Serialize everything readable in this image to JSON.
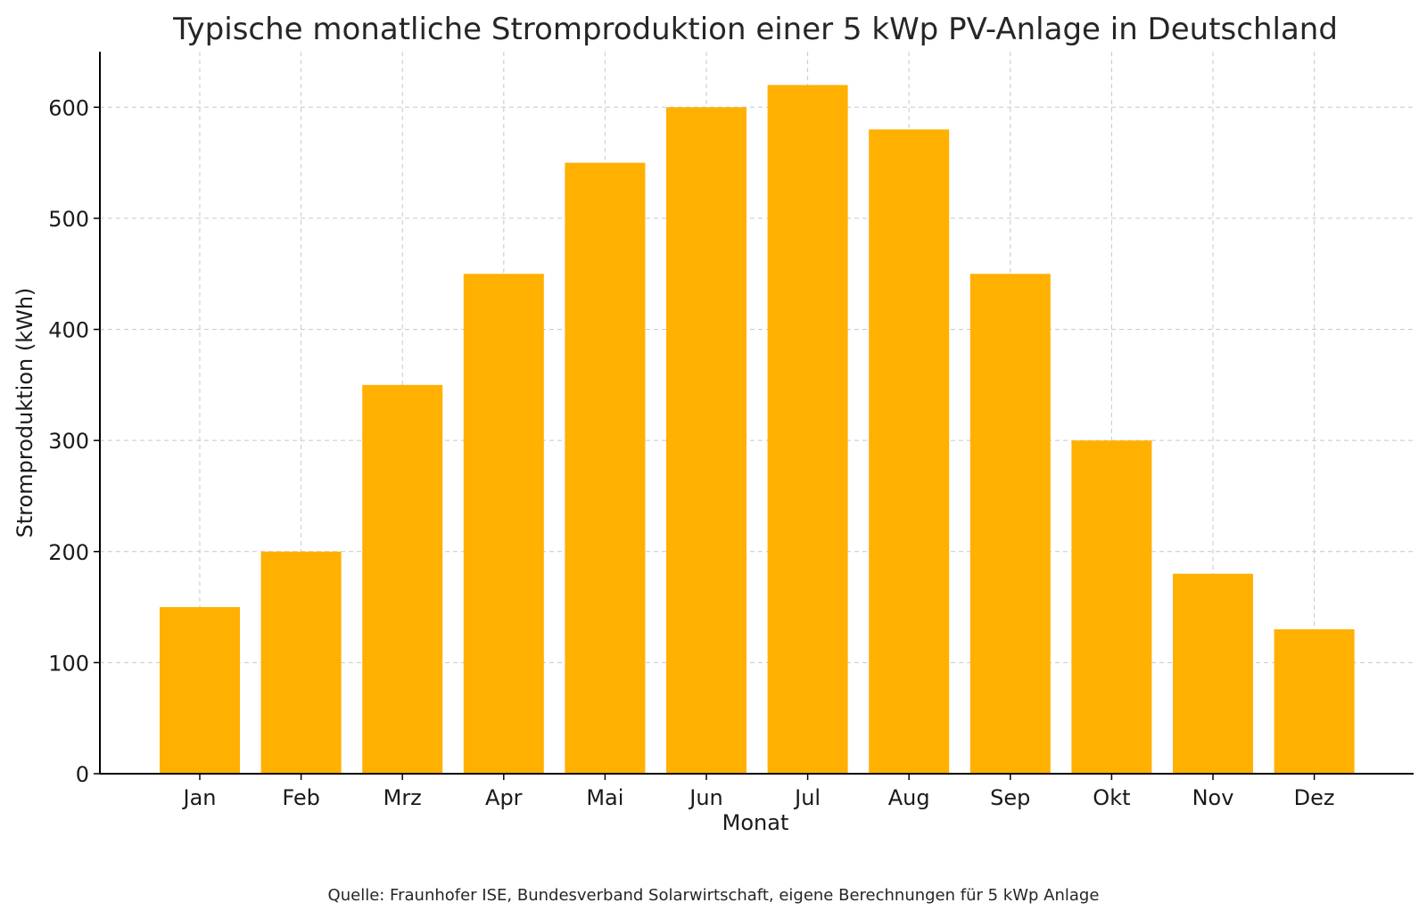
{
  "chart_data": {
    "type": "bar",
    "title": "Typische monatliche Stromproduktion einer 5 kWp PV-Anlage in Deutschland",
    "xlabel": "Monat",
    "ylabel": "Stromproduktion (kWh)",
    "categories": [
      "Jan",
      "Feb",
      "Mrz",
      "Apr",
      "Mai",
      "Jun",
      "Jul",
      "Aug",
      "Sep",
      "Okt",
      "Nov",
      "Dez"
    ],
    "values": [
      150,
      200,
      350,
      450,
      550,
      600,
      620,
      580,
      450,
      300,
      180,
      130
    ],
    "ylim": [
      0,
      650
    ],
    "yticks": [
      0,
      100,
      200,
      300,
      400,
      500,
      600
    ],
    "ytick_labels": [
      "0",
      "100",
      "200",
      "300",
      "400",
      "500",
      "600"
    ],
    "grid": true,
    "bar_color": "#FFB000",
    "source": "Quelle: Fraunhofer ISE, Bundesverband Solarwirtschaft, eigene Berechnungen für 5 kWp Anlage"
  }
}
